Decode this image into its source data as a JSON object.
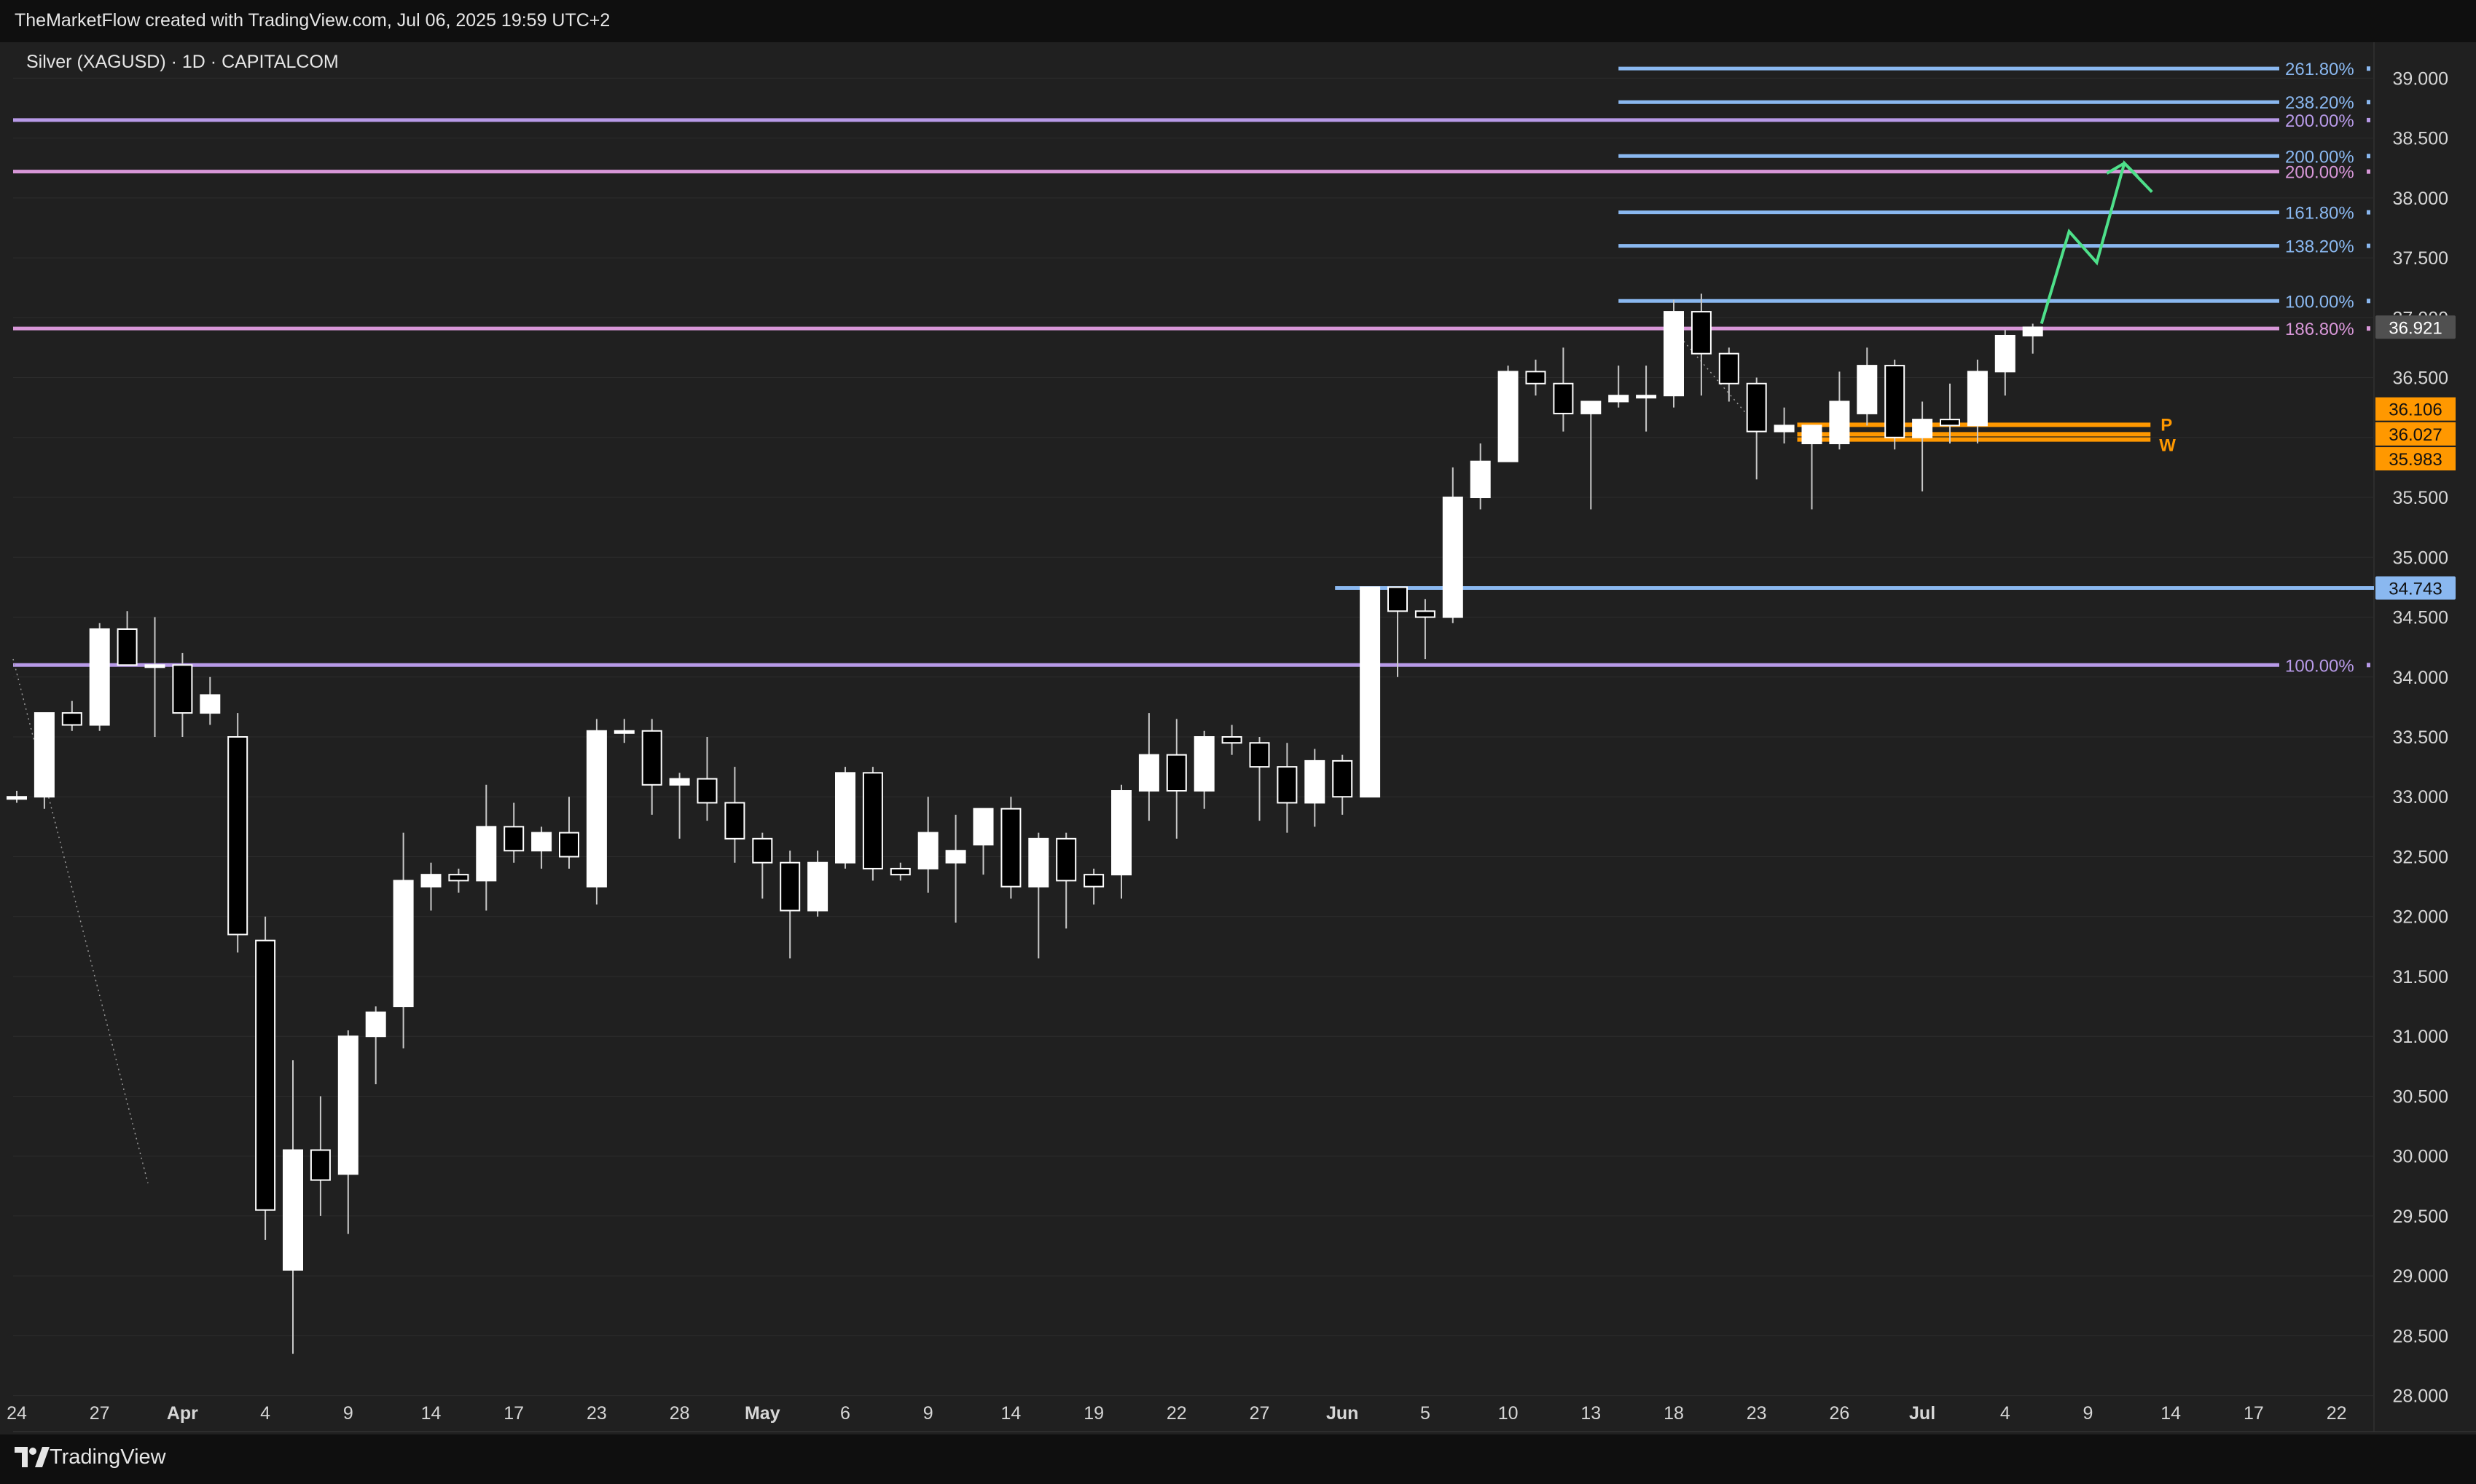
{
  "header": {
    "attribution": "TheMarketFlow created with TradingView.com, Jul 06, 2025 19:59 UTC+2"
  },
  "footer": {
    "brand": "TradingView",
    "brand_icon": "tradingview-logo-icon"
  },
  "colors": {
    "background": "#202020",
    "frame": "#0f0f0f",
    "grid": "#2c2c2c",
    "up": "#ffffff",
    "down": "#000000",
    "wick": "#c8c8c8",
    "fib_blue": "#8ab8f0",
    "fib_purple": "#b89ae8",
    "fib_pink": "#d897d8",
    "orange": "#ff9800",
    "projection": "#4ee08a",
    "price_badge": "#505050"
  },
  "chart_data": {
    "type": "candlestick",
    "title": "Silver (XAGUSD) · 1D · CAPITALCOM",
    "ylim": [
      27.7,
      39.3
    ],
    "y_ticks": [
      "39.000",
      "38.500",
      "38.000",
      "37.500",
      "37.000",
      "36.500",
      "36.000",
      "35.500",
      "35.000",
      "34.500",
      "34.000",
      "33.500",
      "33.000",
      "32.500",
      "32.000",
      "31.500",
      "31.000",
      "30.500",
      "30.000",
      "29.500",
      "29.000",
      "28.500",
      "28.000"
    ],
    "x_ticks": [
      {
        "label": "24",
        "i": 0
      },
      {
        "label": "27",
        "i": 3
      },
      {
        "label": "Apr",
        "i": 6
      },
      {
        "label": "4",
        "i": 9
      },
      {
        "label": "9",
        "i": 12
      },
      {
        "label": "14",
        "i": 15
      },
      {
        "label": "17",
        "i": 18
      },
      {
        "label": "23",
        "i": 21
      },
      {
        "label": "28",
        "i": 24
      },
      {
        "label": "May",
        "i": 27
      },
      {
        "label": "6",
        "i": 30
      },
      {
        "label": "9",
        "i": 33
      },
      {
        "label": "14",
        "i": 36
      },
      {
        "label": "19",
        "i": 39
      },
      {
        "label": "22",
        "i": 42
      },
      {
        "label": "27",
        "i": 45
      },
      {
        "label": "Jun",
        "i": 48
      },
      {
        "label": "5",
        "i": 51
      },
      {
        "label": "10",
        "i": 54
      },
      {
        "label": "13",
        "i": 57
      },
      {
        "label": "18",
        "i": 60
      },
      {
        "label": "23",
        "i": 63
      },
      {
        "label": "26",
        "i": 66
      },
      {
        "label": "Jul",
        "i": 69
      },
      {
        "label": "4",
        "i": 72
      },
      {
        "label": "9",
        "i": 75
      },
      {
        "label": "14",
        "i": 78
      },
      {
        "label": "17",
        "i": 81
      },
      {
        "label": "22",
        "i": 84
      }
    ],
    "candles": [
      [
        33.0,
        33.05,
        32.95,
        33.0
      ],
      [
        33.0,
        33.7,
        32.9,
        33.7
      ],
      [
        33.7,
        33.8,
        33.55,
        33.6
      ],
      [
        33.6,
        34.45,
        33.55,
        34.4
      ],
      [
        34.4,
        34.55,
        34.1,
        34.1
      ],
      [
        34.1,
        34.5,
        33.5,
        34.1
      ],
      [
        34.1,
        34.2,
        33.5,
        33.7
      ],
      [
        33.7,
        34.0,
        33.6,
        33.85
      ],
      [
        33.5,
        33.7,
        31.7,
        31.85
      ],
      [
        31.8,
        32.0,
        29.3,
        29.55
      ],
      [
        29.05,
        30.8,
        28.35,
        30.05
      ],
      [
        30.05,
        30.5,
        29.5,
        29.8
      ],
      [
        29.85,
        31.05,
        29.35,
        31.0
      ],
      [
        31.0,
        31.25,
        30.6,
        31.2
      ],
      [
        31.25,
        32.7,
        30.9,
        32.3
      ],
      [
        32.25,
        32.45,
        32.05,
        32.35
      ],
      [
        32.35,
        32.4,
        32.2,
        32.3
      ],
      [
        32.3,
        33.1,
        32.05,
        32.75
      ],
      [
        32.75,
        32.95,
        32.45,
        32.55
      ],
      [
        32.55,
        32.75,
        32.4,
        32.7
      ],
      [
        32.7,
        33.0,
        32.4,
        32.5
      ],
      [
        32.25,
        33.65,
        32.1,
        33.55
      ],
      [
        33.55,
        33.65,
        33.45,
        33.55
      ],
      [
        33.55,
        33.65,
        32.85,
        33.1
      ],
      [
        33.1,
        33.2,
        32.65,
        33.15
      ],
      [
        33.15,
        33.5,
        32.8,
        32.95
      ],
      [
        32.95,
        33.25,
        32.45,
        32.65
      ],
      [
        32.65,
        32.7,
        32.15,
        32.45
      ],
      [
        32.45,
        32.55,
        31.65,
        32.05
      ],
      [
        32.05,
        32.55,
        32.0,
        32.45
      ],
      [
        32.45,
        33.25,
        32.4,
        33.2
      ],
      [
        33.2,
        33.25,
        32.3,
        32.4
      ],
      [
        32.4,
        32.45,
        32.3,
        32.35
      ],
      [
        32.4,
        33.0,
        32.2,
        32.7
      ],
      [
        32.45,
        32.85,
        31.95,
        32.55
      ],
      [
        32.6,
        32.9,
        32.35,
        32.9
      ],
      [
        32.9,
        33.0,
        32.15,
        32.25
      ],
      [
        32.25,
        32.7,
        31.65,
        32.65
      ],
      [
        32.65,
        32.7,
        31.9,
        32.3
      ],
      [
        32.35,
        32.4,
        32.1,
        32.25
      ],
      [
        32.35,
        33.1,
        32.15,
        33.05
      ],
      [
        33.05,
        33.7,
        32.8,
        33.35
      ],
      [
        33.35,
        33.65,
        32.65,
        33.05
      ],
      [
        33.05,
        33.55,
        32.9,
        33.5
      ],
      [
        33.5,
        33.6,
        33.35,
        33.45
      ],
      [
        33.45,
        33.5,
        32.8,
        33.25
      ],
      [
        33.25,
        33.45,
        32.7,
        32.95
      ],
      [
        32.95,
        33.4,
        32.75,
        33.3
      ],
      [
        33.3,
        33.35,
        32.85,
        33.0
      ],
      [
        33.0,
        34.75,
        33.0,
        34.75
      ],
      [
        34.75,
        34.75,
        34.0,
        34.55
      ],
      [
        34.55,
        34.65,
        34.15,
        34.5
      ],
      [
        34.5,
        35.75,
        34.45,
        35.5
      ],
      [
        35.5,
        35.95,
        35.4,
        35.8
      ],
      [
        35.8,
        36.6,
        35.8,
        36.55
      ],
      [
        36.55,
        36.65,
        36.35,
        36.45
      ],
      [
        36.45,
        36.75,
        36.05,
        36.2
      ],
      [
        36.2,
        36.3,
        35.4,
        36.3
      ],
      [
        36.3,
        36.6,
        36.25,
        36.35
      ],
      [
        36.35,
        36.6,
        36.05,
        36.35
      ],
      [
        36.35,
        37.15,
        36.25,
        37.05
      ],
      [
        37.05,
        37.2,
        36.35,
        36.7
      ],
      [
        36.7,
        36.75,
        36.3,
        36.45
      ],
      [
        36.45,
        36.5,
        35.65,
        36.05
      ],
      [
        36.05,
        36.25,
        35.95,
        36.1
      ],
      [
        35.95,
        36.1,
        35.4,
        36.1
      ],
      [
        35.95,
        36.55,
        35.9,
        36.3
      ],
      [
        36.2,
        36.75,
        36.1,
        36.6
      ],
      [
        36.6,
        36.65,
        35.9,
        36.0
      ],
      [
        36.0,
        36.3,
        35.55,
        36.15
      ],
      [
        36.15,
        36.45,
        35.95,
        36.1
      ],
      [
        36.1,
        36.65,
        35.95,
        36.55
      ],
      [
        36.55,
        36.9,
        36.35,
        36.85
      ],
      [
        36.85,
        36.95,
        36.7,
        36.92
      ]
    ],
    "last_price": "36.921",
    "horizontal_levels": [
      {
        "label": "261.80%",
        "value": 39.08,
        "color": "#8ab8f0",
        "x_start": "Jun 16"
      },
      {
        "label": "238.20%",
        "value": 38.8,
        "color": "#8ab8f0",
        "x_start": "Jun 16"
      },
      {
        "label": "200.00%",
        "value": 38.65,
        "color": "#b89ae8",
        "x_start": "Mar 24"
      },
      {
        "label": "200.00%",
        "value": 38.35,
        "color": "#8ab8f0",
        "x_start": "Jun 16"
      },
      {
        "label": "200.00%",
        "value": 38.22,
        "color": "#d897d8",
        "x_start": "Mar 24"
      },
      {
        "label": "161.80%",
        "value": 37.88,
        "color": "#8ab8f0",
        "x_start": "Jun 16"
      },
      {
        "label": "138.20%",
        "value": 37.6,
        "color": "#8ab8f0",
        "x_start": "Jun 16"
      },
      {
        "label": "100.00%",
        "value": 37.14,
        "color": "#8ab8f0",
        "x_start": "Jun 16"
      },
      {
        "label": "186.80%",
        "value": 36.91,
        "color": "#d897d8",
        "x_start": "Mar 24"
      },
      {
        "label": "100.00%",
        "value": 34.1,
        "color": "#b89ae8",
        "x_start": "Mar 24"
      }
    ],
    "blue_support": {
      "value": 34.743,
      "label": "34.743",
      "x_start": "Jun 2"
    },
    "orange_levels": [
      {
        "value": 36.106,
        "label": "36.106"
      },
      {
        "value": 36.027,
        "label": "36.027"
      },
      {
        "value": 35.983,
        "label": "35.983"
      }
    ],
    "orange_marks": [
      "P",
      "W"
    ],
    "projection_path": [
      {
        "x": "Jul 7",
        "y": 36.95
      },
      {
        "x": "Jul 8",
        "y": 37.72
      },
      {
        "x": "Jul 9",
        "y": 37.46
      },
      {
        "x": "Jul 10",
        "y": 38.29
      },
      {
        "x": "Jul 11",
        "y": 38.05
      }
    ]
  }
}
